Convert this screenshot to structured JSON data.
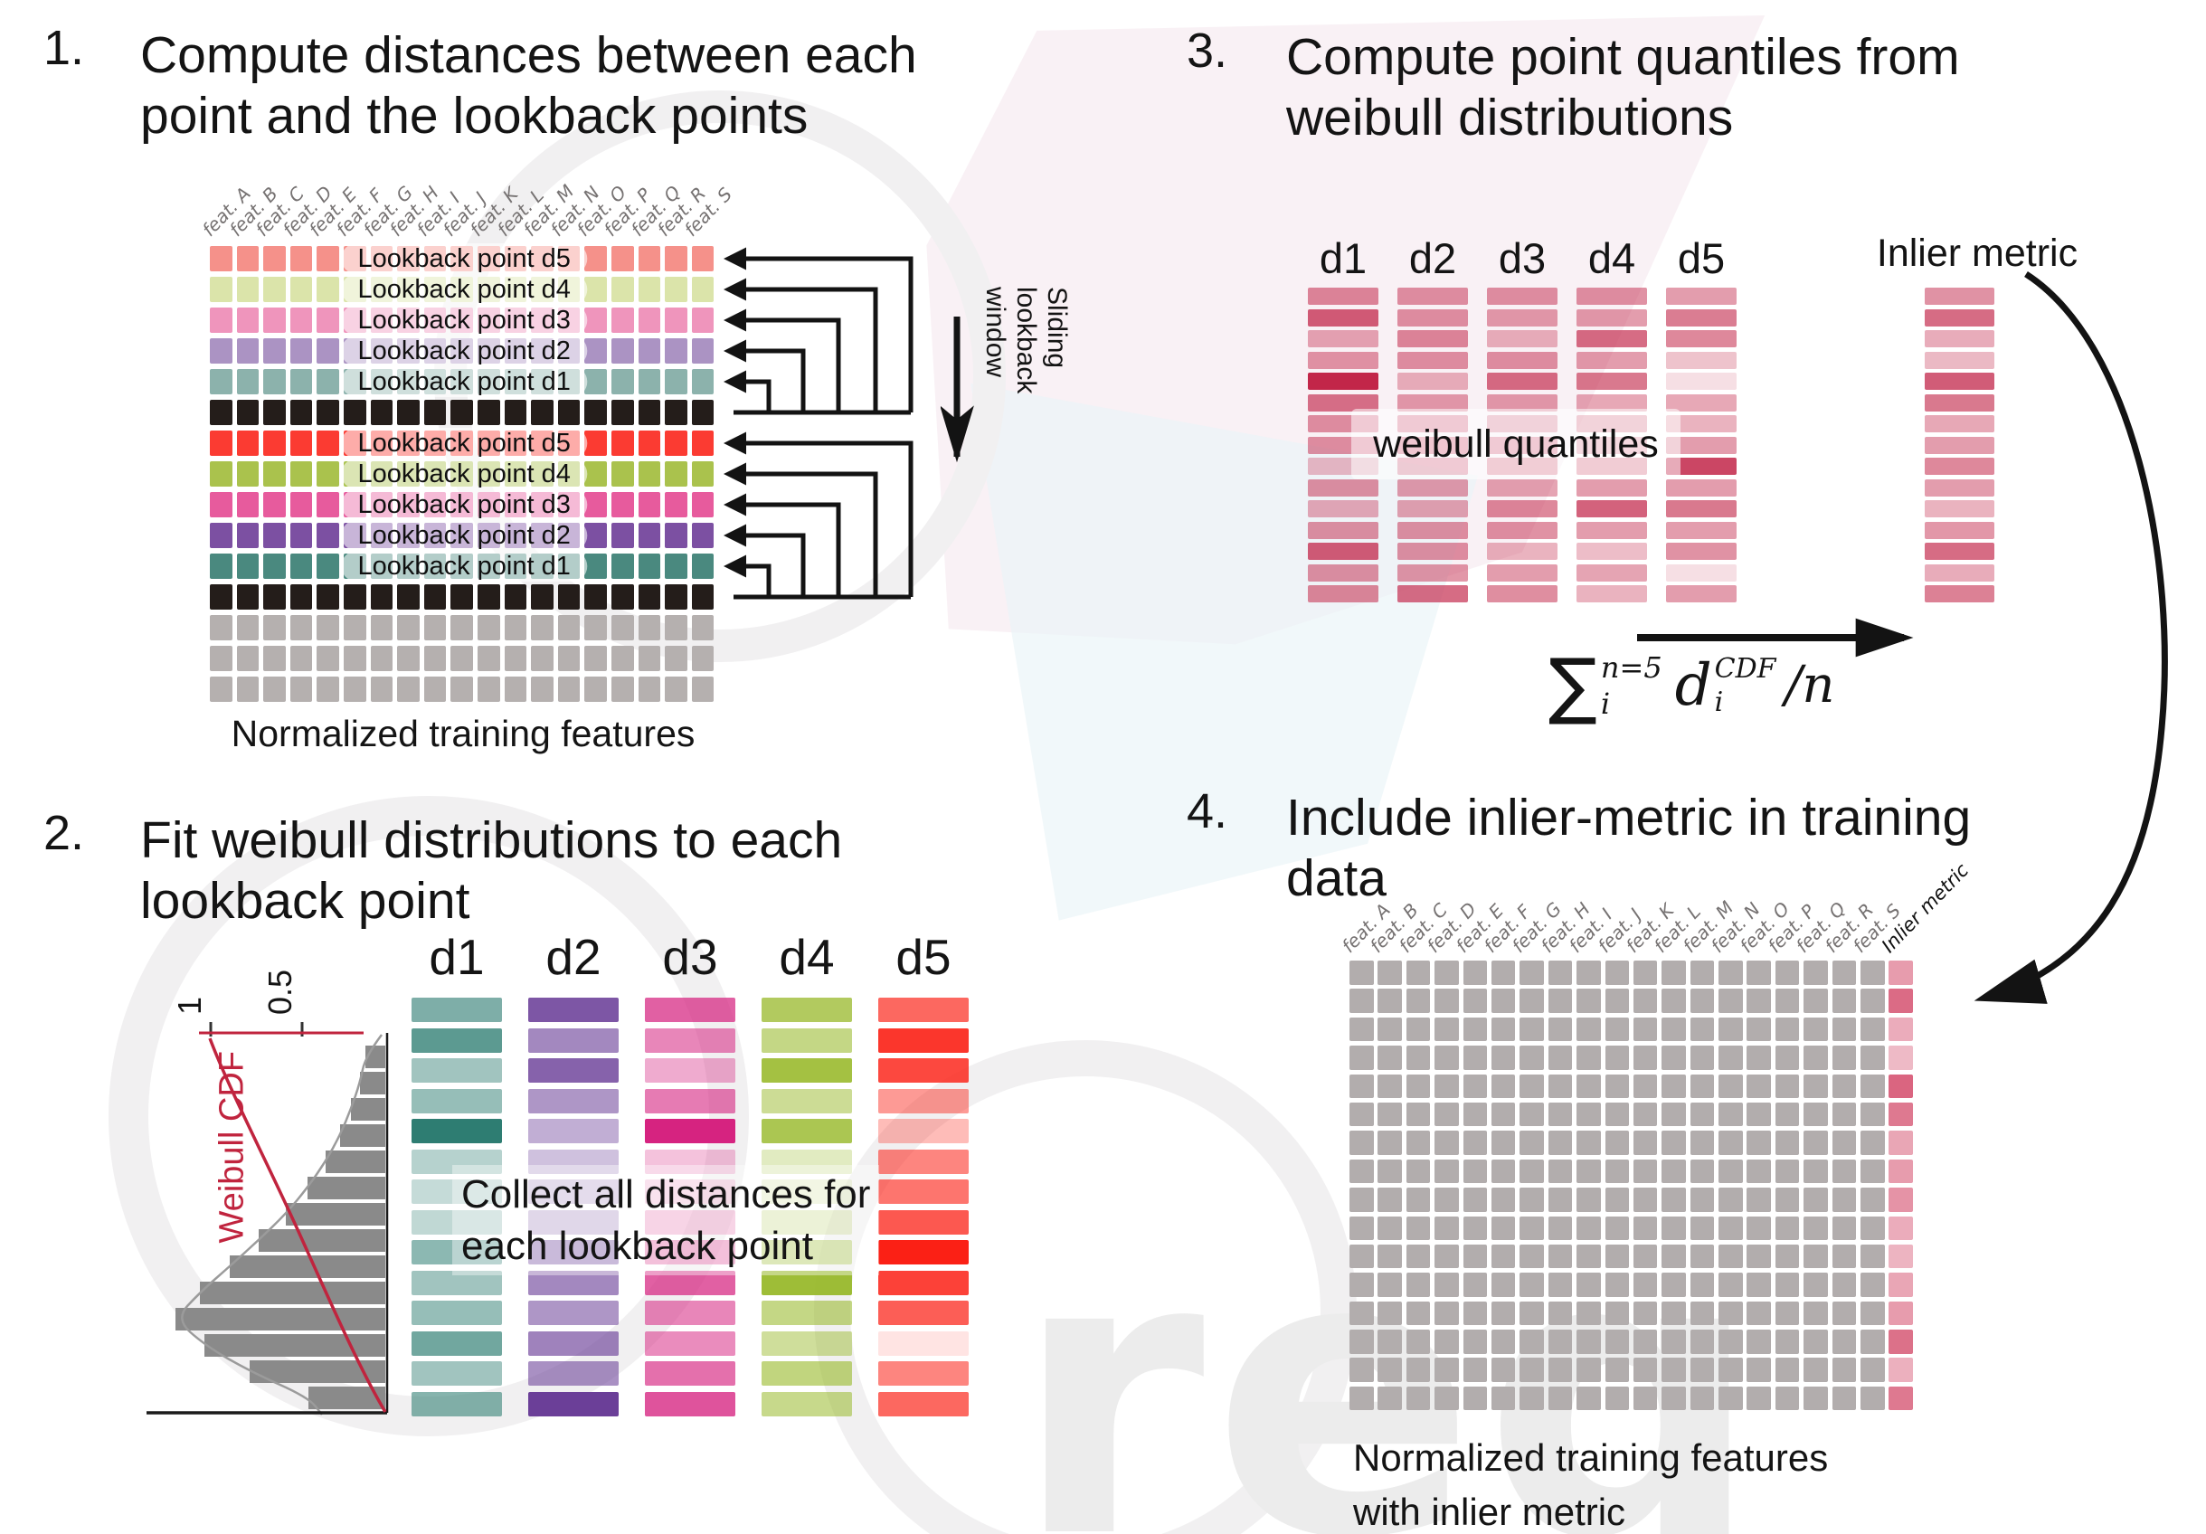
{
  "step1": {
    "number": "1.",
    "title_lines": [
      "Compute distances between each",
      "point and the lookback points"
    ],
    "features": [
      "feat. A",
      "feat. B",
      "feat. C",
      "feat. D",
      "feat. E",
      "feat. F",
      "feat. G",
      "feat. H",
      "feat. I",
      "feat. J",
      "feat. K",
      "feat. L",
      "feat. M",
      "feat. N",
      "feat. O",
      "feat. P",
      "feat. Q",
      "feat. R",
      "feat. S"
    ],
    "black_color": "#241d1a",
    "gray_color": "#b5b0af",
    "rows": [
      {
        "kind": "lookback",
        "color": "#f5918a",
        "label": "Lookback point d5"
      },
      {
        "kind": "lookback",
        "color": "#dbe4aa",
        "label": "Lookback point d4"
      },
      {
        "kind": "lookback",
        "color": "#ef95bc",
        "label": "Lookback point d3"
      },
      {
        "kind": "lookback",
        "color": "#ab93c3",
        "label": "Lookback point d2"
      },
      {
        "kind": "lookback",
        "color": "#8cb2ac",
        "label": "Lookback point d1"
      },
      {
        "kind": "black"
      },
      {
        "kind": "lookback",
        "color": "#fb3b32",
        "label": "Lookback point d5"
      },
      {
        "kind": "lookback",
        "color": "#aac24d",
        "label": "Lookback point d4"
      },
      {
        "kind": "lookback",
        "color": "#e75b9d",
        "label": "Lookback point d3"
      },
      {
        "kind": "lookback",
        "color": "#7c50a2",
        "label": "Lookback point d2"
      },
      {
        "kind": "lookback",
        "color": "#4a897f",
        "label": "Lookback point d1"
      },
      {
        "kind": "black"
      },
      {
        "kind": "gray"
      },
      {
        "kind": "gray"
      },
      {
        "kind": "gray"
      }
    ],
    "sliding_lines": [
      "Sliding",
      "lookback",
      "window"
    ],
    "caption": "Normalized training features"
  },
  "step2": {
    "number": "2.",
    "title_lines": [
      "Fit weibull distributions to each",
      "lookback point"
    ],
    "plot": {
      "ylabel": "Weibull CDF",
      "tick_labels": [
        "1",
        "0.5"
      ],
      "cdf_color": "#c0243e",
      "bar_color": "#8a8a8a",
      "bar_lengths": [
        22,
        28,
        38,
        50,
        66,
        86,
        110,
        140,
        172,
        205,
        232,
        200,
        150,
        85
      ]
    },
    "columns": [
      {
        "label": "d1",
        "color": "#2e7d72",
        "alphas": [
          0.62,
          0.78,
          0.45,
          0.5,
          1.0,
          0.35,
          0.28,
          0.3,
          0.55,
          0.45,
          0.5,
          0.68,
          0.45,
          0.58
        ]
      },
      {
        "label": "d2",
        "color": "#6b3f98",
        "alphas": [
          0.88,
          0.62,
          0.82,
          0.55,
          0.42,
          0.32,
          0.3,
          0.35,
          0.6,
          0.62,
          0.55,
          0.65,
          0.58,
          1.0
        ]
      },
      {
        "label": "d3",
        "color": "#d62380",
        "alphas": [
          0.72,
          0.55,
          0.38,
          0.6,
          1.0,
          0.28,
          0.22,
          0.32,
          0.48,
          0.72,
          0.55,
          0.52,
          0.65,
          0.78
        ]
      },
      {
        "label": "d4",
        "color": "#94b621",
        "alphas": [
          0.72,
          0.55,
          0.85,
          0.48,
          0.78,
          0.28,
          0.2,
          0.3,
          0.52,
          0.9,
          0.55,
          0.45,
          0.58,
          0.52
        ]
      },
      {
        "label": "d5",
        "color": "#fb2015",
        "alphas": [
          0.68,
          0.9,
          0.82,
          0.45,
          0.3,
          0.55,
          0.62,
          0.75,
          1.0,
          0.85,
          0.72,
          0.12,
          0.55,
          0.68
        ]
      }
    ],
    "overlay_lines": [
      "Collect all distances for",
      "each lookback point"
    ]
  },
  "step3": {
    "number": "3.",
    "title_lines": [
      "Compute point quantiles from",
      "weibull distributions"
    ],
    "base_color": "#c22649",
    "columns": [
      {
        "label": "d1",
        "alphas": [
          0.55,
          0.75,
          0.4,
          0.48,
          1.0,
          0.65,
          0.5,
          0.5,
          0.3,
          0.5,
          0.38,
          0.5,
          0.75,
          0.5,
          0.55
        ]
      },
      {
        "label": "d2",
        "alphas": [
          0.5,
          0.5,
          0.55,
          0.5,
          0.35,
          0.45,
          0.5,
          0.55,
          0.5,
          0.45,
          0.42,
          0.5,
          0.5,
          0.48,
          0.68
        ]
      },
      {
        "label": "d3",
        "alphas": [
          0.5,
          0.45,
          0.35,
          0.5,
          0.68,
          0.45,
          0.42,
          0.5,
          0.48,
          0.42,
          0.55,
          0.5,
          0.35,
          0.45,
          0.52
        ]
      },
      {
        "label": "d4",
        "alphas": [
          0.5,
          0.45,
          0.68,
          0.45,
          0.62,
          0.4,
          0.45,
          0.38,
          0.52,
          0.45,
          0.72,
          0.45,
          0.3,
          0.42,
          0.35
        ]
      },
      {
        "label": "d5",
        "alphas": [
          0.45,
          0.6,
          0.55,
          0.28,
          0.15,
          0.4,
          0.35,
          0.45,
          0.85,
          0.45,
          0.62,
          0.45,
          0.5,
          0.15,
          0.45
        ]
      }
    ],
    "quantile_label": "weibull quantiles",
    "inlier": {
      "label": "Inlier metric",
      "alphas": [
        0.5,
        0.68,
        0.38,
        0.32,
        0.75,
        0.62,
        0.4,
        0.45,
        0.55,
        0.45,
        0.35,
        0.48,
        0.68,
        0.38,
        0.58
      ]
    },
    "formula": {
      "sum": "∑",
      "sum_sup": "n=5",
      "sum_sub": "i",
      "var": "d",
      "var_sup": "CDF",
      "var_sub": "i",
      "div": "/n"
    }
  },
  "step4": {
    "number": "4.",
    "title_lines": [
      "Include inlier-metric in training",
      "data"
    ],
    "inlier_header": "Inlier metric",
    "cell_color": "#b2adad",
    "inlier_color": "#cf3a5c",
    "rows": 16,
    "inlier_alphas": [
      0.5,
      0.75,
      0.42,
      0.35,
      0.78,
      0.68,
      0.45,
      0.5,
      0.55,
      0.42,
      0.38,
      0.45,
      0.5,
      0.72,
      0.4,
      0.68
    ],
    "caption_lines": [
      "Normalized training features",
      "with inlier metric"
    ]
  },
  "watermark": {
    "text": "req"
  }
}
